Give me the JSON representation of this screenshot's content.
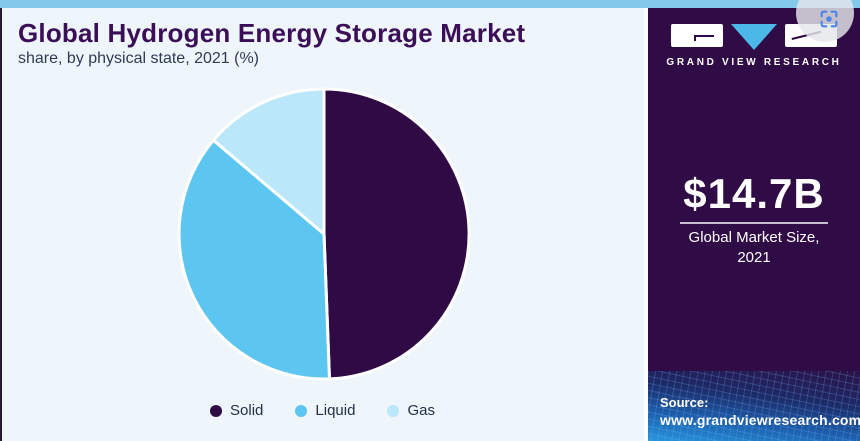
{
  "header": {
    "title": "Global Hydrogen Energy Storage Market",
    "subtitle": "share, by physical state, 2021 (%)"
  },
  "chart_data": {
    "type": "pie",
    "title": "Global Hydrogen Energy Storage Market",
    "subtitle": "share, by physical state, 2021 (%)",
    "unit": "%",
    "start_angle_deg": 0,
    "direction": "clockwise",
    "legend_position": "bottom",
    "slices": [
      {
        "label": "Solid",
        "value": 49.4,
        "color": "#2f0a45"
      },
      {
        "label": "Liquid",
        "value": 36.8,
        "color": "#5cc6f0"
      },
      {
        "label": "Gas",
        "value": 13.8,
        "color": "#bbe7fa"
      }
    ]
  },
  "sidebar": {
    "brand": "GRAND VIEW RESEARCH",
    "market_size_value": "$14.7B",
    "market_size_label": "Global Market Size,",
    "market_size_year": "2021",
    "source_label": "Source:",
    "source_url": "www.grandviewresearch.com"
  },
  "overlay": {
    "capture_icon": "screen-capture"
  },
  "colors": {
    "top_bar": "#82c9ec",
    "main_background": "#eef5fb",
    "title_text": "#3b0e57",
    "subtitle_text": "#2f3b55",
    "legend_text": "#223048",
    "sidebar_background": "#300c46",
    "logo_triangle": "#4cb8e8",
    "slice_solid": "#2f0a45",
    "slice_liquid": "#5cc6f0",
    "slice_gas": "#bbe7fa",
    "source_gradient_bottom": "#2796dd",
    "capture_icon_blue": "#4a86e8"
  }
}
